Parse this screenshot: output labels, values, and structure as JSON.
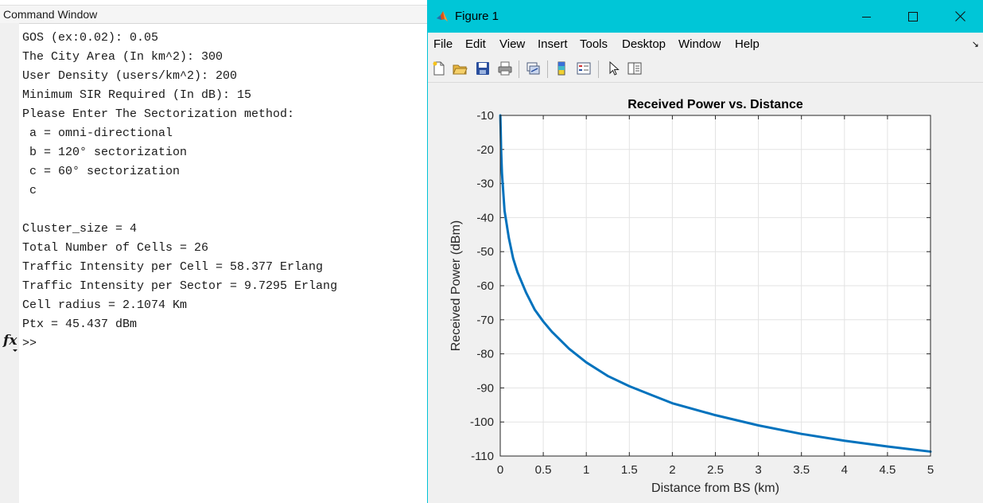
{
  "command_window": {
    "title": "Command Window",
    "lines": [
      "GOS (ex:0.02): 0.05",
      "The City Area (In km^2): 300",
      "User Density (users/km^2): 200",
      "Minimum SIR Required (In dB): 15",
      "Please Enter The Sectorization method:",
      " a = omni-directional",
      " b = 120° sectorization",
      " c = 60° sectorization",
      " c",
      "",
      "Cluster_size = 4",
      "Total Number of Cells = 26",
      "Traffic Intensity per Cell = 58.377 Erlang",
      "Traffic Intensity per Sector = 9.7295 Erlang",
      "Cell radius = 2.1074 Km",
      "Ptx = 45.437 dBm"
    ],
    "fx_label": "fx",
    "prompt": ">>"
  },
  "figure": {
    "title": "Figure 1",
    "menu": [
      "File",
      "Edit",
      "View",
      "Insert",
      "Tools",
      "Desktop",
      "Window",
      "Help"
    ],
    "menu_arrow": "↘",
    "toolbar_icons": [
      "new-figure-icon",
      "open-file-icon",
      "save-icon",
      "print-icon",
      "link-plot-icon",
      "colorbar-icon",
      "legend-icon",
      "pointer-icon",
      "property-inspector-icon"
    ]
  },
  "chart_data": {
    "type": "line",
    "title": "Received Power vs. Distance",
    "xlabel": "Distance from BS (km)",
    "ylabel": "Received Power (dBm)",
    "xlim": [
      0,
      5
    ],
    "ylim": [
      -110,
      -10
    ],
    "xticks": [
      0,
      0.5,
      1,
      1.5,
      2,
      2.5,
      3,
      3.5,
      4,
      4.5,
      5
    ],
    "xtick_labels": [
      "0",
      "0.5",
      "1",
      "1.5",
      "2",
      "2.5",
      "3",
      "3.5",
      "4",
      "4.5",
      "5"
    ],
    "yticks": [
      -10,
      -20,
      -30,
      -40,
      -50,
      -60,
      -70,
      -80,
      -90,
      -100,
      -110
    ],
    "ytick_labels": [
      "-10",
      "-20",
      "-30",
      "-40",
      "-50",
      "-60",
      "-70",
      "-80",
      "-90",
      "-100",
      "-110"
    ],
    "grid": true,
    "series": [
      {
        "color": "#0072bd",
        "x": [
          0.001,
          0.005,
          0.01,
          0.02,
          0.05,
          0.1,
          0.15,
          0.2,
          0.3,
          0.4,
          0.5,
          0.6,
          0.8,
          1.0,
          1.25,
          1.5,
          1.75,
          2.0,
          2.5,
          3.0,
          3.5,
          4.0,
          4.5,
          5.0
        ],
        "y": [
          -10,
          -14,
          -20,
          -27,
          -38,
          -46,
          -52,
          -56,
          -62,
          -67,
          -70.5,
          -73.5,
          -78.5,
          -82.5,
          -86.5,
          -89.5,
          -92,
          -94.5,
          -98,
          -101,
          -103.5,
          -105.5,
          -107.2,
          -108.7
        ]
      }
    ]
  }
}
